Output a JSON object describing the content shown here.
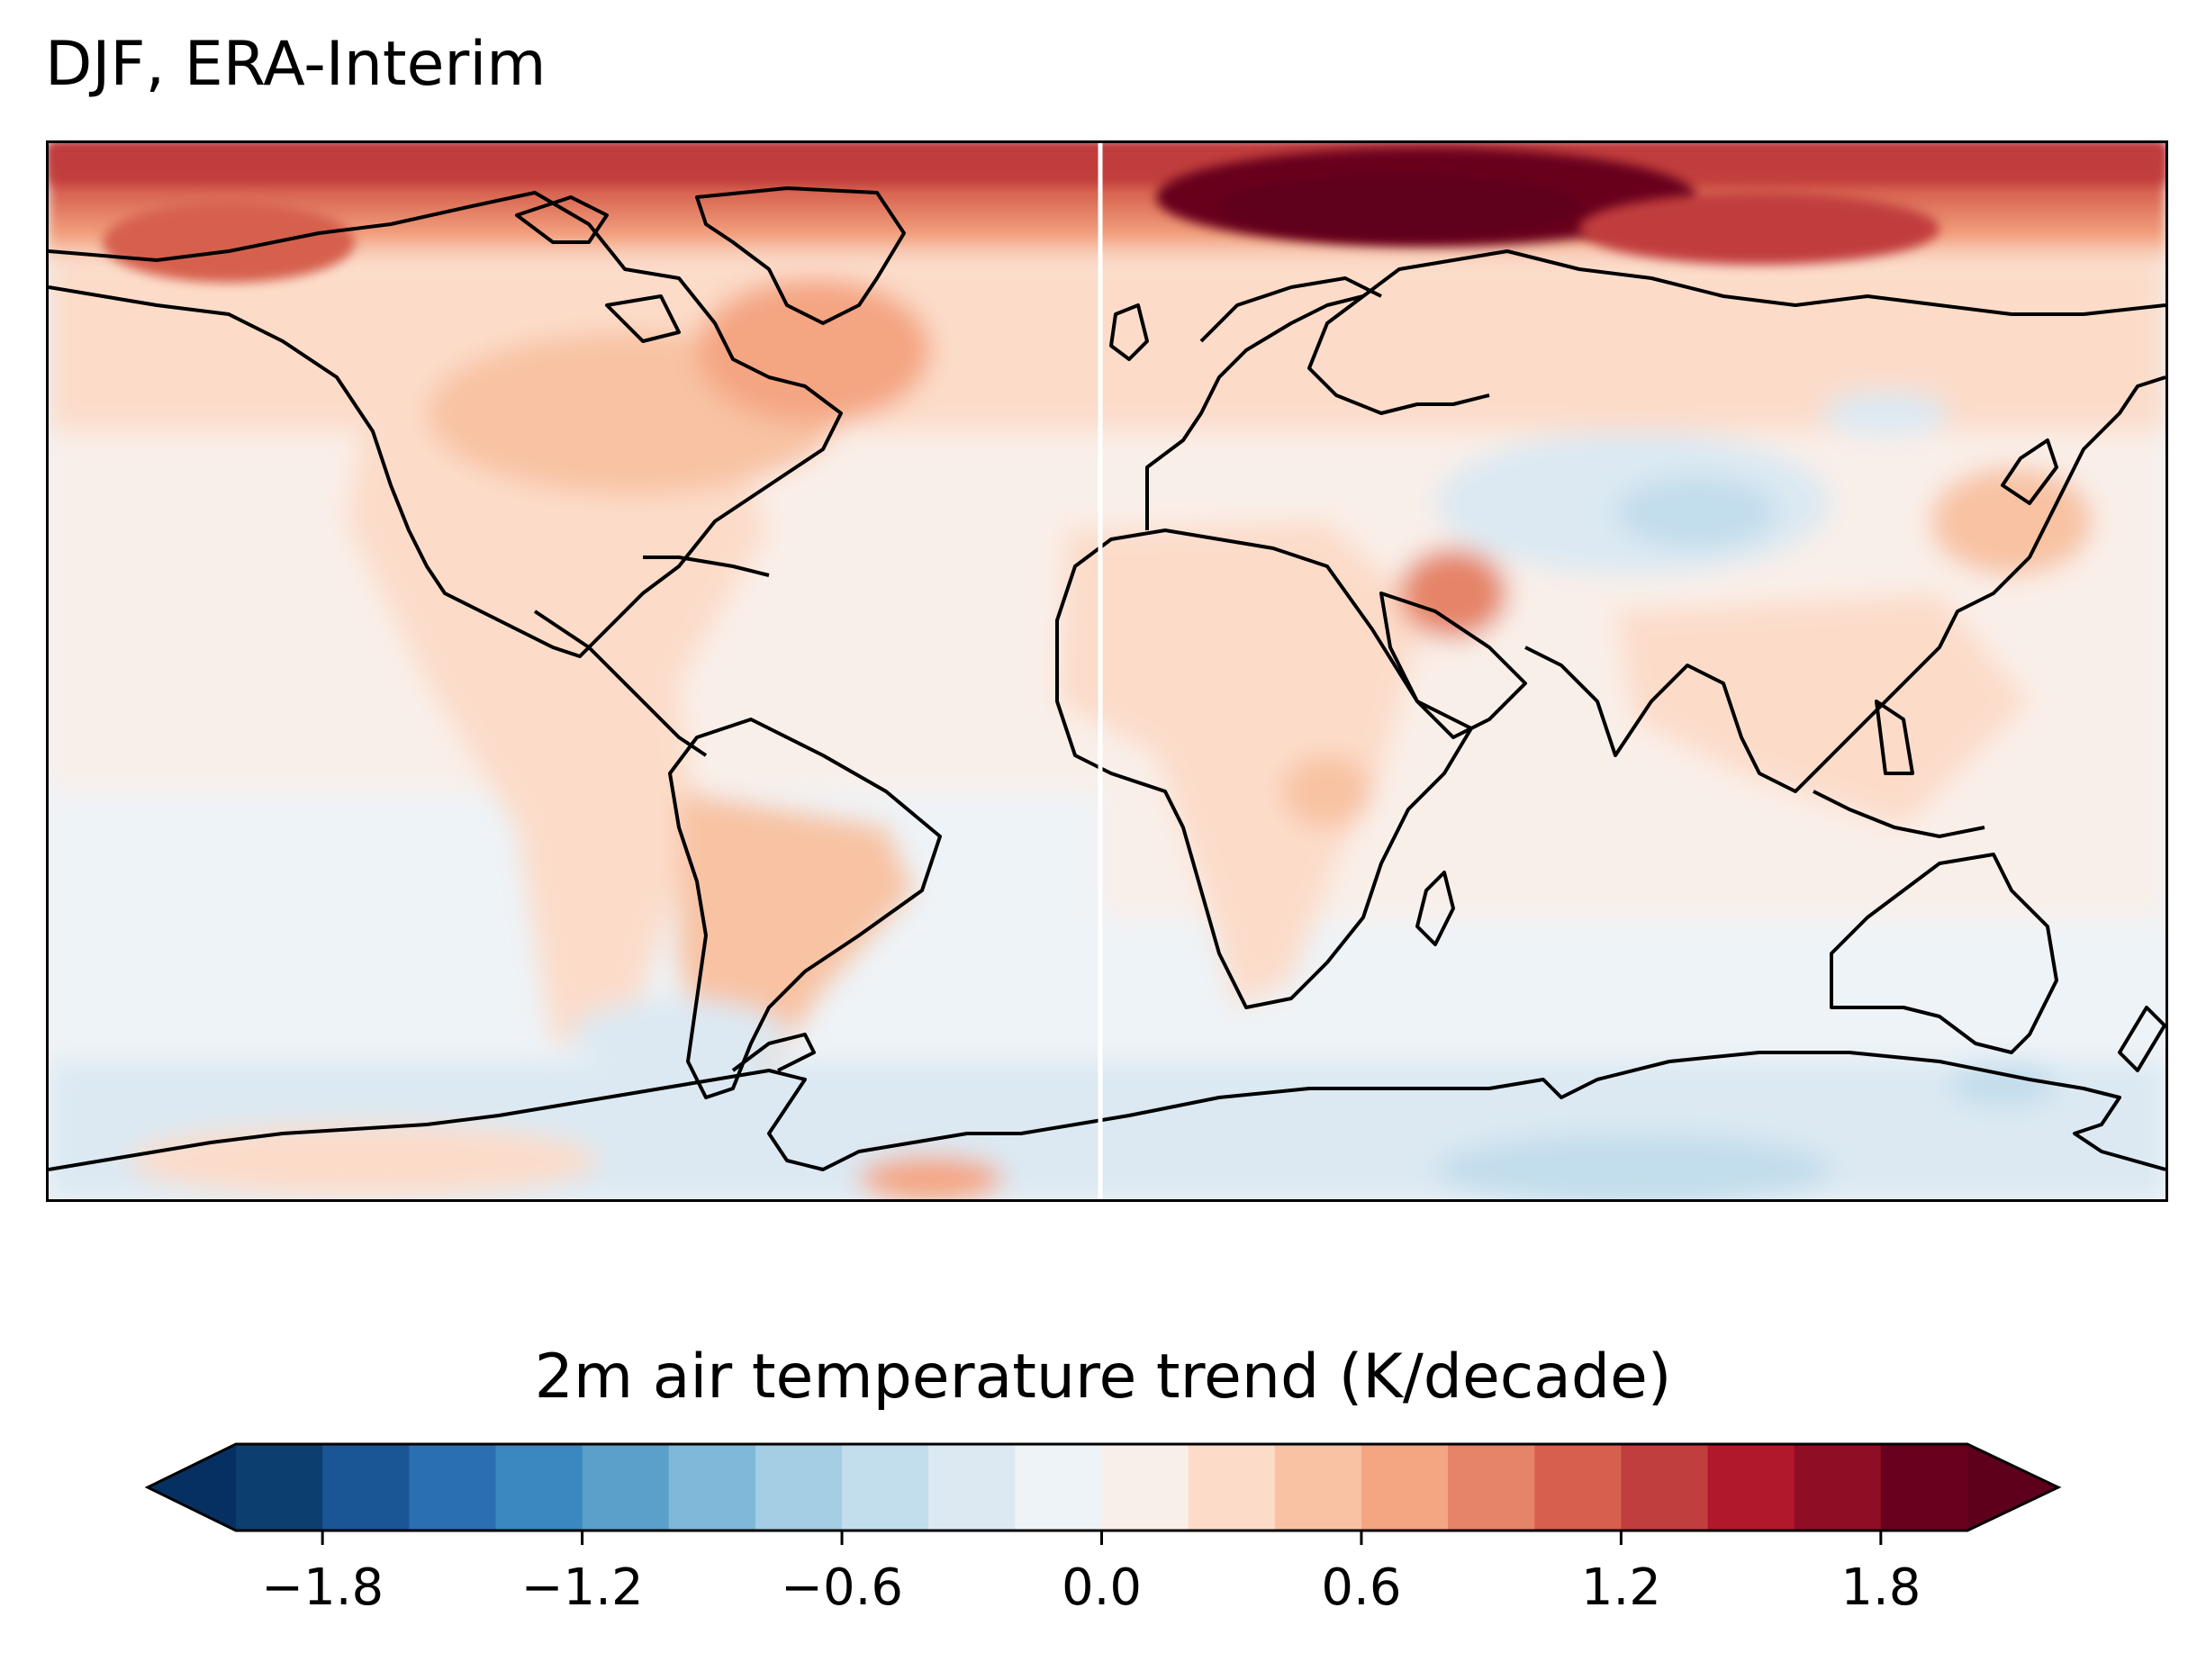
{
  "title": "DJF, ERA-Interim",
  "colorbar": {
    "label": "2m air temperature trend (K/decade)",
    "boundaries": [
      -2.0,
      -1.8,
      -1.6,
      -1.4,
      -1.2,
      -1.0,
      -0.8,
      -0.6,
      -0.4,
      -0.2,
      0.0,
      0.2,
      0.4,
      0.6,
      0.8,
      1.0,
      1.2,
      1.4,
      1.6,
      1.8,
      2.0
    ],
    "colors": [
      "#0d3e70",
      "#1a5596",
      "#2a6fb1",
      "#3b87bf",
      "#5aa0cb",
      "#7fb8d8",
      "#a5cde3",
      "#c2ddec",
      "#dce9f2",
      "#eef3f7",
      "#f9efe9",
      "#fcdcc9",
      "#f8c2a3",
      "#f4a582",
      "#e58468",
      "#d6604d",
      "#c13e3e",
      "#b2182b",
      "#8f0d25",
      "#67001f"
    ],
    "extend": "both",
    "extend_low_color": "#053061",
    "extend_high_color": "#5e001c",
    "ticks": [
      "−1.8",
      "−1.2",
      "−0.6",
      "0.0",
      "0.6",
      "1.2",
      "1.8"
    ],
    "tick_values": [
      -1.8,
      -1.2,
      -0.6,
      0.0,
      0.6,
      1.2,
      1.8
    ]
  }
}
